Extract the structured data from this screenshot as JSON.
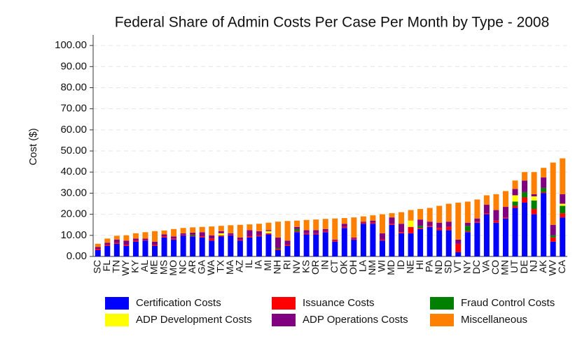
{
  "chart_data": {
    "type": "stacked_bar",
    "title": "Federal Share of Admin Costs Per Case Per Month by Type - 2008",
    "y_label": "Cost ($)",
    "categories": [
      "SC",
      "FL",
      "TN",
      "WY",
      "KY",
      "AL",
      "ME",
      "MS",
      "MO",
      "NC",
      "AR",
      "GA",
      "WA",
      "TX",
      "MA",
      "AZ",
      "IL",
      "IA",
      "MI",
      "NH",
      "RI",
      "NV",
      "KS",
      "OR",
      "IN",
      "CT",
      "OK",
      "OH",
      "LA",
      "NM",
      "WI",
      "MD",
      "ID",
      "NE",
      "HI",
      "PA",
      "ND",
      "SD",
      "VT",
      "NY",
      "DC",
      "VA",
      "CO",
      "MN",
      "UT",
      "DE",
      "NJ",
      "AK",
      "WV",
      "CA"
    ],
    "series": [
      {
        "name": "Certification Costs",
        "color": "#0000ff",
        "values": [
          3,
          5,
          6,
          5,
          7,
          7.5,
          5,
          9,
          8,
          10,
          9.5,
          9,
          7.5,
          9.5,
          10,
          7.5,
          9,
          9.5,
          10.5,
          3,
          5,
          11.5,
          10.5,
          10.5,
          11.5,
          7,
          13.5,
          8,
          15.5,
          15.5,
          7.5,
          15,
          11,
          11,
          13,
          14,
          12.5,
          12.5,
          2,
          11.5,
          16,
          20,
          16,
          18,
          23,
          25.5,
          20,
          30,
          7,
          18.5
        ]
      },
      {
        "name": "Issuance Costs",
        "color": "#ff0000",
        "values": [
          0.5,
          0.5,
          0.5,
          0.5,
          0.5,
          0.3,
          0.5,
          0.5,
          0.5,
          0.3,
          0.3,
          0.5,
          1,
          0.5,
          0.3,
          0.5,
          0.5,
          0.5,
          0.5,
          0.5,
          0.5,
          0.5,
          0.5,
          0.5,
          0.5,
          0.5,
          0.5,
          0.5,
          0.5,
          0.5,
          0.5,
          0.5,
          0.5,
          3,
          0.5,
          0.5,
          1,
          1.5,
          4,
          0.5,
          0.5,
          0.5,
          1,
          0.5,
          1,
          2.5,
          2.5,
          0.5,
          2,
          2
        ]
      },
      {
        "name": "Fraud Control Costs",
        "color": "#008000",
        "values": [
          0,
          0,
          0,
          0,
          0,
          0,
          0,
          0,
          0,
          0,
          0.5,
          0,
          0,
          0,
          0,
          0,
          0,
          0,
          0,
          0.5,
          0,
          1,
          0,
          0,
          0,
          0,
          0,
          0,
          0,
          0,
          0,
          0,
          0,
          0,
          1,
          0,
          0,
          0,
          0,
          2.5,
          0,
          0,
          0,
          0,
          2,
          2.5,
          4,
          2,
          1,
          3.5
        ]
      },
      {
        "name": "ADP Development Costs",
        "color": "#ffff00",
        "values": [
          0,
          0,
          0,
          0,
          0,
          0,
          0,
          0,
          0,
          0,
          0,
          0,
          0,
          1,
          0,
          0,
          0,
          0,
          1,
          0,
          0,
          0,
          0,
          0,
          0,
          0,
          0,
          0,
          0,
          0,
          0,
          0,
          0,
          3,
          0,
          0,
          0,
          0,
          0,
          0,
          0,
          0,
          0,
          0,
          3,
          0,
          2,
          0,
          0,
          1
        ]
      },
      {
        "name": "ADP Operations Costs",
        "color": "#800080",
        "values": [
          1,
          1,
          1.5,
          2,
          1,
          0.7,
          1.5,
          1,
          1,
          0.7,
          1,
          2,
          1.5,
          1,
          0.7,
          1,
          3,
          2,
          0.5,
          5,
          2,
          1,
          1.5,
          1.5,
          1,
          0.5,
          1.5,
          0.5,
          0.5,
          1,
          3,
          3,
          4,
          0,
          3,
          2,
          2.5,
          2.5,
          2,
          1.5,
          1.5,
          4,
          5,
          5,
          3,
          5.5,
          1,
          5,
          5,
          4.5
        ]
      },
      {
        "name": "Miscellaneous",
        "color": "#ff8000",
        "values": [
          1.5,
          2,
          1.8,
          2.5,
          2.5,
          3,
          5,
          1.8,
          3.5,
          2.5,
          2.5,
          2.5,
          4.2,
          2.5,
          3.8,
          6,
          2.7,
          3.5,
          3.5,
          7.5,
          9.3,
          3,
          4.8,
          5,
          4.8,
          10,
          2.7,
          9.5,
          2.5,
          2.5,
          9,
          2,
          5.5,
          5,
          5,
          6.5,
          8,
          8.5,
          17.5,
          10,
          9,
          4.5,
          7.5,
          7.5,
          4,
          4,
          10.5,
          4.5,
          29.5,
          17
        ]
      }
    ],
    "ylim": [
      0,
      105
    ],
    "yticks": [
      {
        "value": 0,
        "label": "0.00"
      },
      {
        "value": 10,
        "label": "10.00"
      },
      {
        "value": 20,
        "label": "20.00"
      },
      {
        "value": 30,
        "label": "30.00"
      },
      {
        "value": 40,
        "label": "40.00"
      },
      {
        "value": 50,
        "label": "50.00"
      },
      {
        "value": 60,
        "label": "60.00"
      },
      {
        "value": 70,
        "label": "70.00"
      },
      {
        "value": 80,
        "label": "80.00"
      },
      {
        "value": 90,
        "label": "90.00"
      },
      {
        "value": 100,
        "label": "100.00"
      }
    ],
    "grid": true
  }
}
